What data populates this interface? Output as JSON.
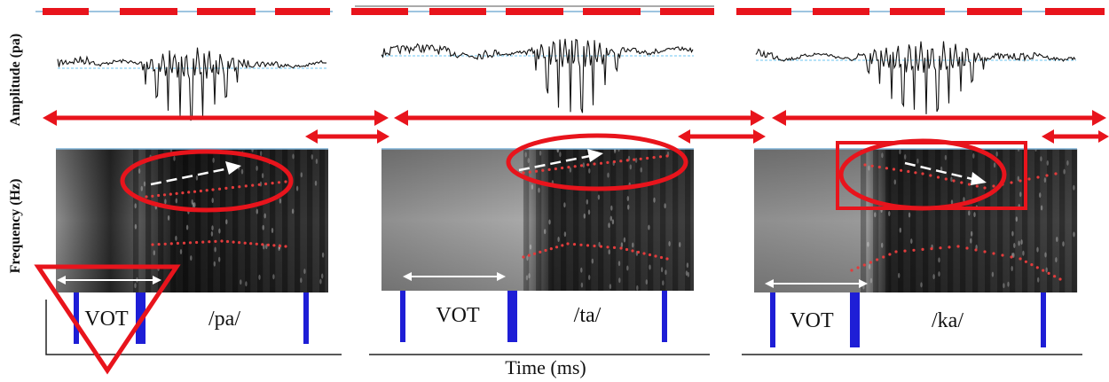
{
  "y_axis_labels": {
    "amplitude": "Amplitude (pa)",
    "frequency": "Frequency (Hz)"
  },
  "x_axis_label": "Time (ms)",
  "panels": [
    {
      "vot_label": "VOT",
      "syllable": "/pa/"
    },
    {
      "vot_label": "VOT",
      "syllable": "/ta/"
    },
    {
      "vot_label": "VOT",
      "syllable": "/ka/"
    }
  ],
  "colors": {
    "annotation_red": "#e8141c",
    "boundary_blue": "#1e1ed6",
    "baseline_dashed": "#6ec6f0",
    "formant_dots": "#e23c3c",
    "arrow_white": "#ffffff"
  }
}
